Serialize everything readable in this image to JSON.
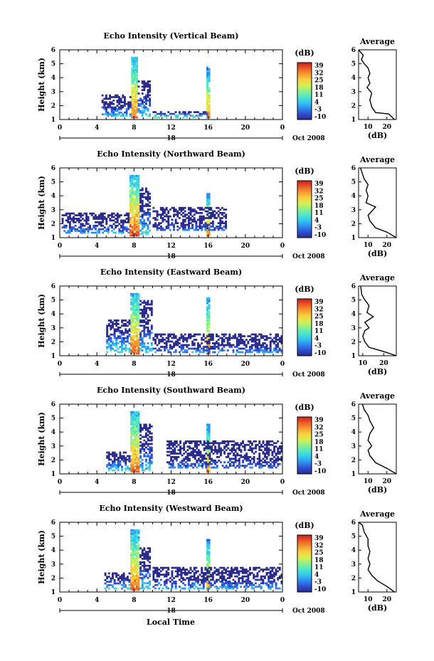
{
  "figure": {
    "date_label": "Oct 2008",
    "xlabel": "Local Time",
    "day_label": "18"
  },
  "colorbar": {
    "unit": "(dB)",
    "ticks": [
      "39",
      "32",
      "25",
      "18",
      "11",
      "4",
      "-3",
      "-10"
    ],
    "colors": [
      "#2b2b8c",
      "#2f4fd0",
      "#2e8ef0",
      "#35c7f0",
      "#4fe7c6",
      "#8ff08c",
      "#d6f050",
      "#f8d040",
      "#f59a30",
      "#ec5a26",
      "#c81e1e"
    ]
  },
  "chart_data": [
    {
      "type": "heatmap",
      "title": "Echo Intensity (Vertical Beam)",
      "xlabel": "Local Time",
      "ylabel": "Height (km)",
      "xlim": [
        0,
        24
      ],
      "ylim": [
        1,
        6
      ],
      "xticks": [
        "0",
        "4",
        "8",
        "12",
        "16",
        "20",
        "0"
      ],
      "yticks": [
        "1",
        "2",
        "3",
        "4",
        "5",
        "6"
      ],
      "color_unit": "dB",
      "color_range": [
        -10,
        39
      ],
      "features": [
        {
          "time_range": [
            7.7,
            8.4
          ],
          "height_range": [
            1.1,
            5.5
          ],
          "peak_dB": 35
        },
        {
          "time_range": [
            8.4,
            9.8
          ],
          "height_range": [
            1.2,
            3.8
          ],
          "peak_dB": 12
        },
        {
          "time_range": [
            15.8,
            16.2
          ],
          "height_range": [
            1.1,
            4.8
          ],
          "peak_dB": 33
        },
        {
          "time_range": [
            4.5,
            7.7
          ],
          "height_range": [
            1.2,
            2.8
          ],
          "peak_dB": 10
        },
        {
          "time_range": [
            10.0,
            16.0
          ],
          "height_range": [
            1.1,
            1.6
          ],
          "peak_dB": 18
        }
      ],
      "average": {
        "title": "Average",
        "xlabel": "(dB)",
        "xlim": [
          5,
          25
        ],
        "xticks": [
          "10",
          "20"
        ],
        "ylim": [
          1,
          6
        ],
        "yticks": [
          "1",
          "2",
          "3",
          "4",
          "5",
          "6"
        ],
        "profile": [
          [
            24,
            1.0
          ],
          [
            21,
            1.4
          ],
          [
            14,
            1.5
          ],
          [
            12,
            1.9
          ],
          [
            11,
            2.4
          ],
          [
            12,
            2.9
          ],
          [
            9.5,
            3.3
          ],
          [
            11,
            3.6
          ],
          [
            10,
            4.0
          ],
          [
            11,
            4.3
          ],
          [
            10,
            4.7
          ],
          [
            8,
            5.0
          ],
          [
            6.5,
            5.3
          ],
          [
            7.5,
            5.6
          ],
          [
            5,
            6.0
          ]
        ]
      }
    },
    {
      "type": "heatmap",
      "title": "Echo Intensity (Northward Beam)",
      "xlabel": "Local Time",
      "ylabel": "Height (km)",
      "xlim": [
        0,
        24
      ],
      "ylim": [
        1,
        6
      ],
      "xticks": [
        "0",
        "4",
        "8",
        "12",
        "16",
        "20",
        "0"
      ],
      "yticks": [
        "1",
        "2",
        "3",
        "4",
        "5",
        "6"
      ],
      "color_unit": "dB",
      "color_range": [
        -10,
        39
      ],
      "features": [
        {
          "time_range": [
            7.5,
            8.6
          ],
          "height_range": [
            1.1,
            5.5
          ],
          "peak_dB": 37
        },
        {
          "time_range": [
            8.6,
            9.8
          ],
          "height_range": [
            1.2,
            4.6
          ],
          "peak_dB": 12
        },
        {
          "time_range": [
            15.8,
            16.2
          ],
          "height_range": [
            1.1,
            4.2
          ],
          "peak_dB": 33
        },
        {
          "time_range": [
            0.2,
            7.5
          ],
          "height_range": [
            1.3,
            2.8
          ],
          "peak_dB": 8
        },
        {
          "time_range": [
            10.0,
            18.0
          ],
          "height_range": [
            1.5,
            3.2
          ],
          "peak_dB": 4
        }
      ],
      "average": {
        "title": "Average",
        "xlabel": "(dB)",
        "xlim": [
          5,
          25
        ],
        "xticks": [
          "10",
          "20"
        ],
        "ylim": [
          1,
          6
        ],
        "yticks": [
          "1",
          "2",
          "3",
          "4",
          "5",
          "6"
        ],
        "profile": [
          [
            25,
            1.0
          ],
          [
            20,
            1.4
          ],
          [
            14,
            1.7
          ],
          [
            11,
            2.2
          ],
          [
            10,
            2.6
          ],
          [
            14,
            3.2
          ],
          [
            9,
            3.5
          ],
          [
            10,
            4.0
          ],
          [
            9,
            4.4
          ],
          [
            10,
            4.8
          ],
          [
            8,
            5.2
          ],
          [
            7,
            5.6
          ],
          [
            6,
            6.0
          ]
        ]
      }
    },
    {
      "type": "heatmap",
      "title": "Echo Intensity (Eastward Beam)",
      "xlabel": "Local Time",
      "ylabel": "Height (km)",
      "xlim": [
        0,
        24
      ],
      "ylim": [
        1,
        6
      ],
      "xticks": [
        "0",
        "4",
        "8",
        "12",
        "16",
        "20",
        "0"
      ],
      "yticks": [
        "1",
        "2",
        "3",
        "4",
        "5",
        "6"
      ],
      "color_unit": "dB",
      "color_range": [
        -10,
        39
      ],
      "features": [
        {
          "time_range": [
            7.6,
            8.6
          ],
          "height_range": [
            1.1,
            5.5
          ],
          "peak_dB": 36
        },
        {
          "time_range": [
            8.6,
            10.0
          ],
          "height_range": [
            1.2,
            5.0
          ],
          "peak_dB": 10
        },
        {
          "time_range": [
            15.8,
            16.2
          ],
          "height_range": [
            1.1,
            5.2
          ],
          "peak_dB": 34
        },
        {
          "time_range": [
            5.0,
            7.6
          ],
          "height_range": [
            1.2,
            3.6
          ],
          "peak_dB": 14
        },
        {
          "time_range": [
            10.0,
            24.0
          ],
          "height_range": [
            1.2,
            2.6
          ],
          "peak_dB": 6
        }
      ],
      "average": {
        "title": "Average",
        "xlabel": "(dB)",
        "xlim": [
          8,
          26
        ],
        "xticks": [
          "10",
          "20"
        ],
        "ylim": [
          1,
          6
        ],
        "yticks": [
          "1",
          "2",
          "3",
          "4",
          "5",
          "6"
        ],
        "profile": [
          [
            26,
            1.0
          ],
          [
            20,
            1.3
          ],
          [
            13,
            1.6
          ],
          [
            11,
            2.0
          ],
          [
            10,
            2.4
          ],
          [
            11,
            2.8
          ],
          [
            13,
            3.0
          ],
          [
            11,
            3.4
          ],
          [
            15,
            3.8
          ],
          [
            12,
            4.1
          ],
          [
            13,
            4.6
          ],
          [
            11,
            5.0
          ],
          [
            9.5,
            5.4
          ],
          [
            9,
            6.0
          ]
        ]
      }
    },
    {
      "type": "heatmap",
      "title": "Echo Intensity (Southward Beam)",
      "xlabel": "Local Time",
      "ylabel": "Height (km)",
      "xlim": [
        0,
        24
      ],
      "ylim": [
        1,
        6
      ],
      "xticks": [
        "0",
        "4",
        "8",
        "12",
        "16",
        "20",
        "0"
      ],
      "yticks": [
        "1",
        "2",
        "3",
        "4",
        "5",
        "6"
      ],
      "color_unit": "dB",
      "color_range": [
        -10,
        39
      ],
      "features": [
        {
          "time_range": [
            7.6,
            8.6
          ],
          "height_range": [
            1.1,
            5.5
          ],
          "peak_dB": 36
        },
        {
          "time_range": [
            8.6,
            10.0
          ],
          "height_range": [
            1.2,
            4.6
          ],
          "peak_dB": 11
        },
        {
          "time_range": [
            15.8,
            16.2
          ],
          "height_range": [
            1.1,
            4.6
          ],
          "peak_dB": 33
        },
        {
          "time_range": [
            5.0,
            7.6
          ],
          "height_range": [
            1.2,
            2.6
          ],
          "peak_dB": 12
        },
        {
          "time_range": [
            11.5,
            24.0
          ],
          "height_range": [
            1.4,
            3.4
          ],
          "peak_dB": 4
        }
      ],
      "average": {
        "title": "Average",
        "xlabel": "(dB)",
        "xlim": [
          5,
          25
        ],
        "xticks": [
          "10",
          "20"
        ],
        "ylim": [
          1,
          6
        ],
        "yticks": [
          "1",
          "2",
          "3",
          "4",
          "5",
          "6"
        ],
        "profile": [
          [
            25,
            1.0
          ],
          [
            20,
            1.4
          ],
          [
            14,
            1.8
          ],
          [
            11,
            2.3
          ],
          [
            10,
            2.7
          ],
          [
            12,
            3.0
          ],
          [
            10,
            3.4
          ],
          [
            11,
            3.9
          ],
          [
            13,
            4.3
          ],
          [
            11,
            4.8
          ],
          [
            10,
            5.2
          ],
          [
            8,
            5.6
          ],
          [
            7,
            6.0
          ]
        ]
      }
    },
    {
      "type": "heatmap",
      "title": "Echo Intensity (Westward Beam)",
      "xlabel": "Local Time",
      "ylabel": "Height (km)",
      "xlim": [
        0,
        24
      ],
      "ylim": [
        1,
        6
      ],
      "xticks": [
        "0",
        "4",
        "8",
        "12",
        "16",
        "20",
        "0"
      ],
      "yticks": [
        "1",
        "2",
        "3",
        "4",
        "5",
        "6"
      ],
      "color_unit": "dB",
      "color_range": [
        -10,
        39
      ],
      "features": [
        {
          "time_range": [
            7.6,
            8.6
          ],
          "height_range": [
            1.1,
            5.5
          ],
          "peak_dB": 35
        },
        {
          "time_range": [
            8.6,
            9.8
          ],
          "height_range": [
            1.2,
            4.2
          ],
          "peak_dB": 11
        },
        {
          "time_range": [
            15.8,
            16.2
          ],
          "height_range": [
            1.1,
            4.8
          ],
          "peak_dB": 33
        },
        {
          "time_range": [
            4.8,
            7.6
          ],
          "height_range": [
            1.2,
            2.4
          ],
          "peak_dB": 12
        },
        {
          "time_range": [
            10.0,
            24.0
          ],
          "height_range": [
            1.2,
            2.8
          ],
          "peak_dB": 8
        }
      ],
      "average": {
        "title": "Average",
        "xlabel": "(dB)",
        "xlim": [
          5,
          25
        ],
        "xticks": [
          "10",
          "20"
        ],
        "ylim": [
          1,
          6
        ],
        "yticks": [
          "1",
          "2",
          "3",
          "4",
          "5",
          "6"
        ],
        "profile": [
          [
            24,
            1.0
          ],
          [
            20,
            1.4
          ],
          [
            15,
            1.8
          ],
          [
            12,
            2.2
          ],
          [
            10,
            2.6
          ],
          [
            11,
            3.0
          ],
          [
            10,
            3.4
          ],
          [
            11,
            3.9
          ],
          [
            10,
            4.3
          ],
          [
            10,
            4.8
          ],
          [
            8,
            5.3
          ],
          [
            7,
            5.8
          ],
          [
            5,
            6.0
          ]
        ]
      }
    }
  ]
}
